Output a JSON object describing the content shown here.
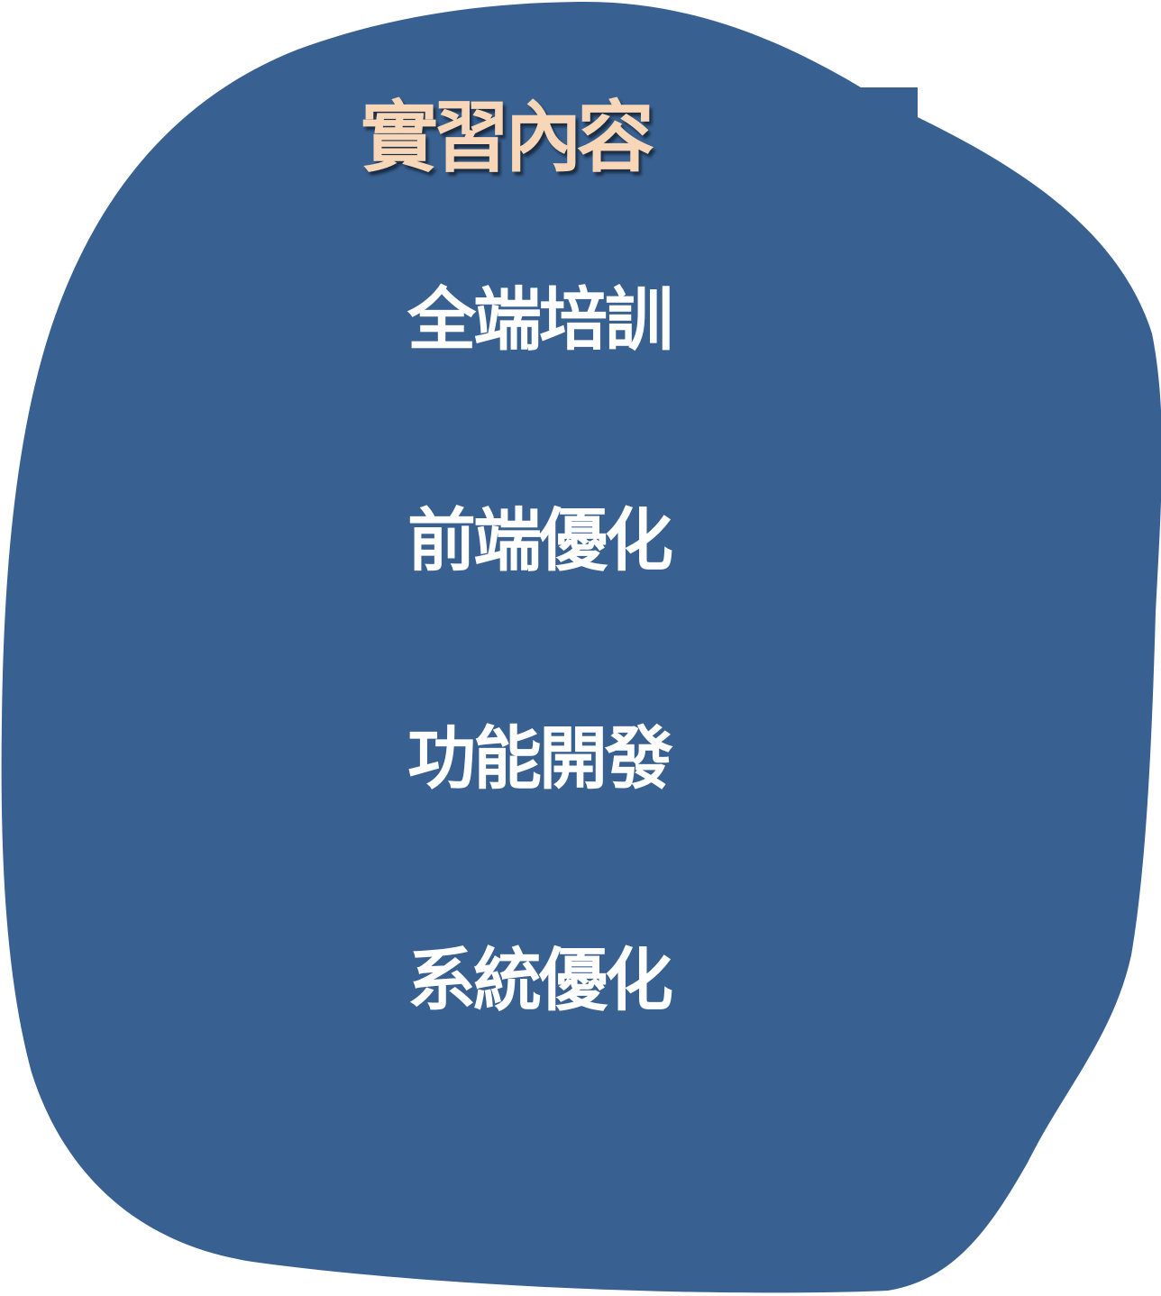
{
  "colors": {
    "blob": "#386192",
    "title": "#f8d6b8",
    "items": "#ffffff",
    "background": "#ffffff"
  },
  "title": "實習內容",
  "items": [
    {
      "label": "全端培訓"
    },
    {
      "label": "前端優化"
    },
    {
      "label": "功能開發"
    },
    {
      "label": "系統優化"
    }
  ]
}
